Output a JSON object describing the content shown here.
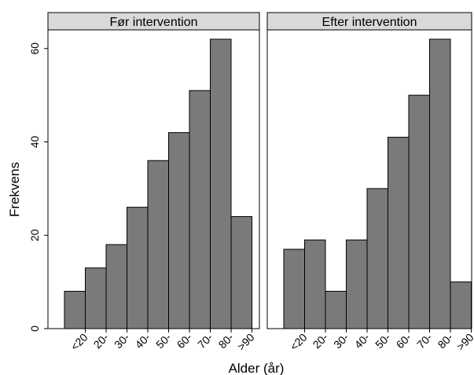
{
  "chart_data": {
    "type": "bar",
    "xlabel": "Alder (år)",
    "ylabel": "Frekvens",
    "ylim": [
      0,
      64
    ],
    "yticks": [
      0,
      20,
      40,
      60
    ],
    "categories": [
      "<20",
      "20-",
      "30-",
      "40-",
      "50-",
      "60-",
      "70-",
      "80-",
      ">90"
    ],
    "colors": {
      "bar": "#7a7a7a",
      "strip": "#d9d9d9"
    },
    "grid": false,
    "legend": "none",
    "panels": [
      {
        "title": "Før intervention",
        "values": [
          8,
          13,
          18,
          26,
          36,
          42,
          51,
          62,
          24
        ]
      },
      {
        "title": "Efter intervention",
        "values": [
          17,
          19,
          8,
          19,
          30,
          41,
          50,
          62,
          10
        ]
      }
    ]
  }
}
